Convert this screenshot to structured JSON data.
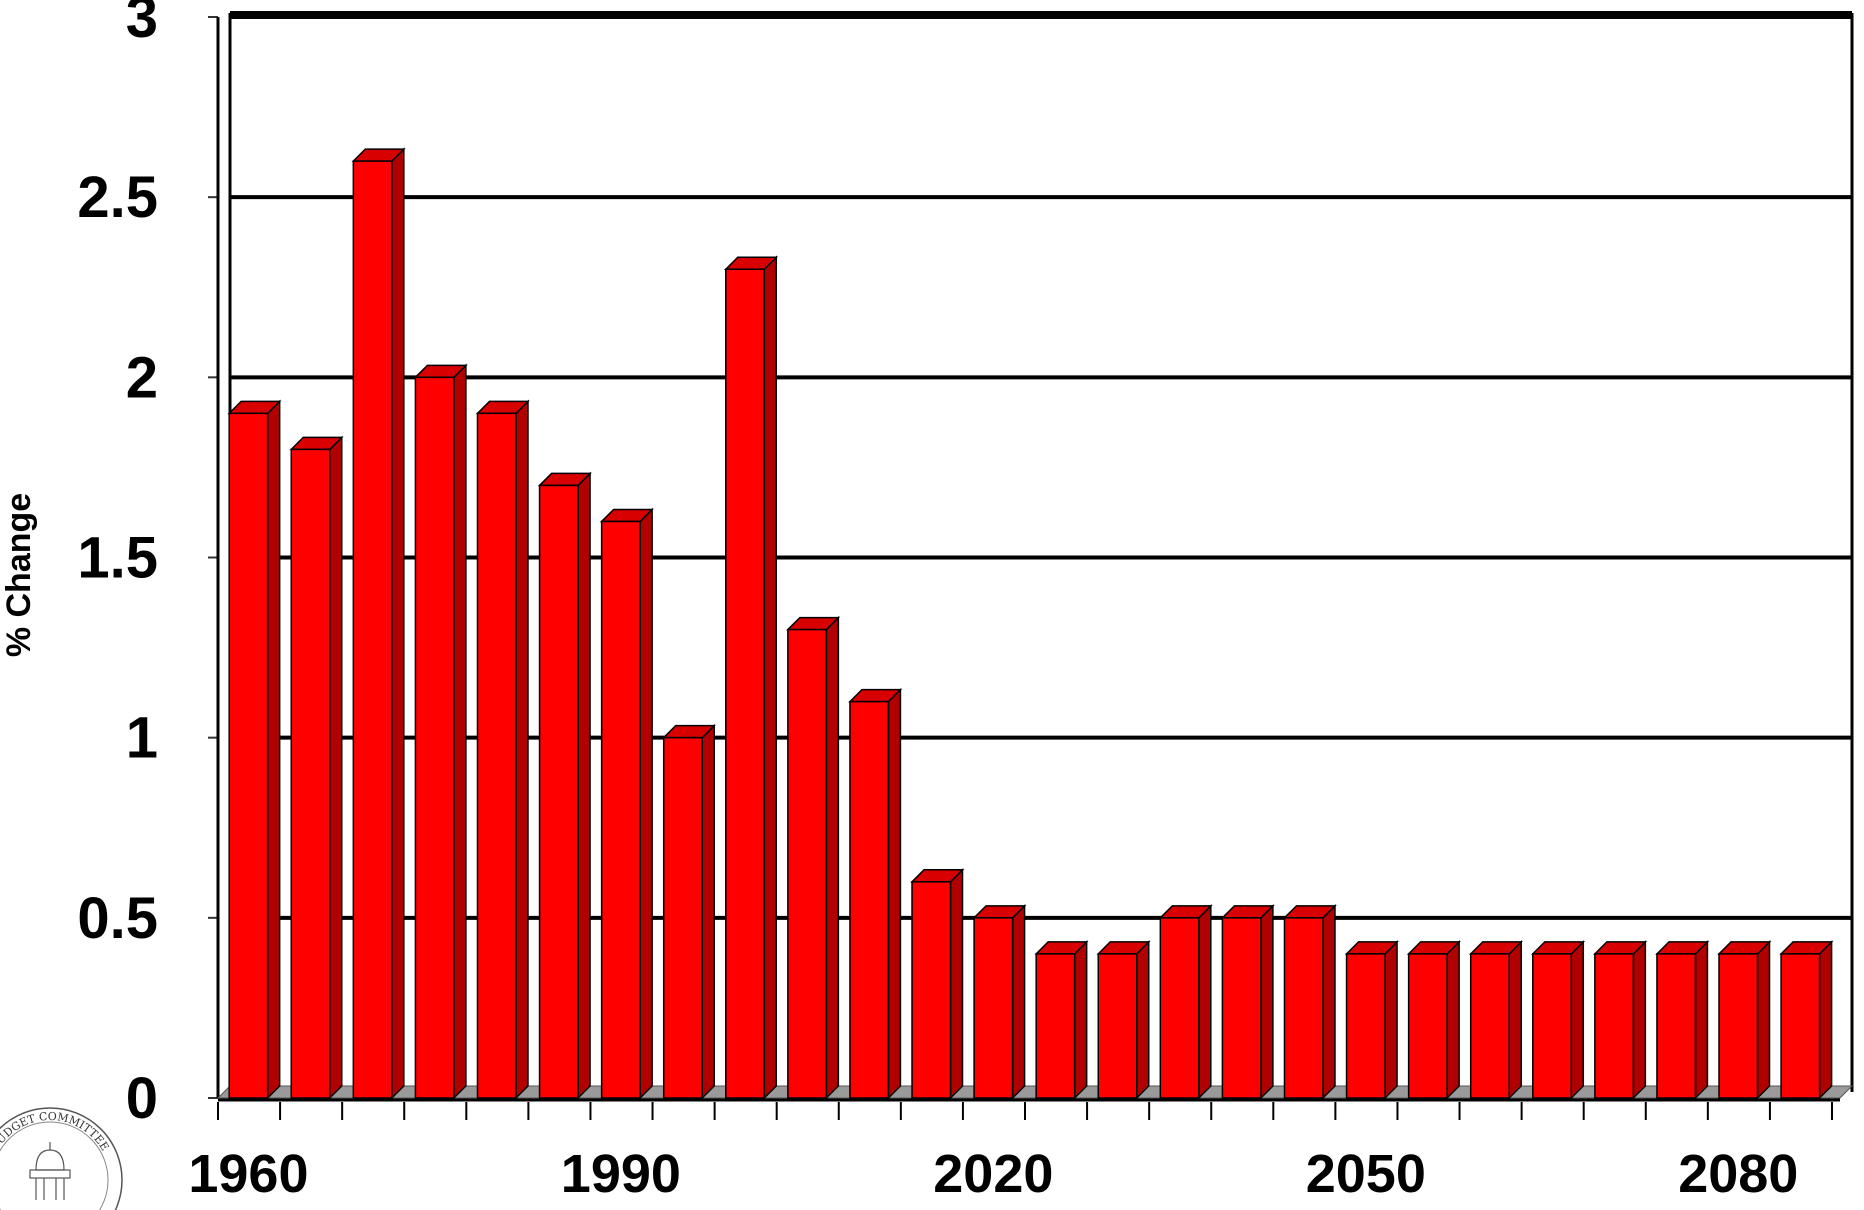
{
  "chart_data": {
    "type": "bar",
    "title": "",
    "xlabel": "",
    "ylabel": "% Change",
    "ylim": [
      0,
      3
    ],
    "y_ticks": [
      "0",
      "0.5",
      "1",
      "1.5",
      "2",
      "2.5",
      "3"
    ],
    "x_tick_labels": [
      "1960",
      "1990",
      "2020",
      "2050",
      "2080"
    ],
    "categories": [
      "1960",
      "1965",
      "1970",
      "1975",
      "1980",
      "1985",
      "1990",
      "1995",
      "2000",
      "2005",
      "2010",
      "2015",
      "2020",
      "2025",
      "2030",
      "2035",
      "2040",
      "2045",
      "2050",
      "2055",
      "2060",
      "2065",
      "2070",
      "2075",
      "2080",
      "2085"
    ],
    "values": [
      1.9,
      1.8,
      2.6,
      2.0,
      1.9,
      1.7,
      1.6,
      1.0,
      2.3,
      1.3,
      1.1,
      0.6,
      0.5,
      0.4,
      0.4,
      0.5,
      0.5,
      0.5,
      0.4,
      0.4,
      0.4,
      0.4,
      0.4,
      0.4,
      0.4,
      0.4
    ],
    "grid": true,
    "bar_color": "#ff0000",
    "bar_side_color": "#b00000",
    "bar_top_color": "#d80000"
  },
  "seal": {
    "text": "BUDGET COMMITTEE",
    "icon": "capitol-dome-icon"
  }
}
